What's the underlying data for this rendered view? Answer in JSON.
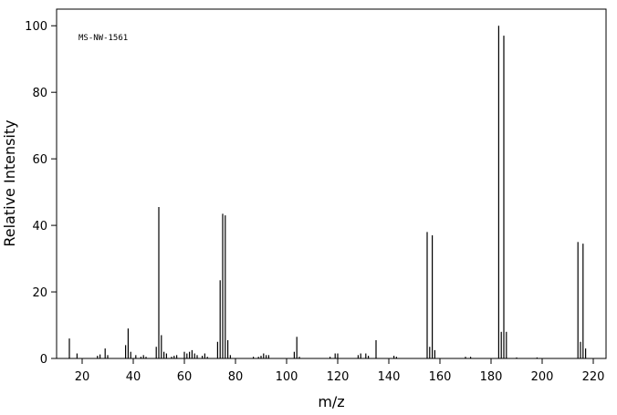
{
  "chart_data": {
    "type": "stem",
    "annotation": "MS-NW-1561",
    "x_label": "m/z",
    "y_label": "Relative Intensity",
    "color": "#000000",
    "x": [
      15,
      18,
      26,
      27,
      29,
      30,
      37,
      38,
      39,
      41,
      43,
      44,
      45,
      49,
      50,
      51,
      52,
      53,
      55,
      56,
      57,
      60,
      61,
      62,
      63,
      64,
      65,
      67,
      68,
      69,
      73,
      74,
      75,
      76,
      77,
      78,
      87,
      89,
      90,
      91,
      92,
      93,
      103,
      104,
      105,
      117,
      119,
      120,
      128,
      129,
      131,
      132,
      135,
      142,
      143,
      155,
      156,
      157,
      158,
      170,
      172,
      183,
      184,
      185,
      186,
      190,
      198,
      214,
      215,
      216,
      217
    ],
    "values": [
      6,
      1.5,
      0.8,
      1.2,
      3,
      1,
      4,
      9,
      2,
      1,
      0.5,
      1,
      0.5,
      3.5,
      45.5,
      7,
      2,
      1.5,
      0.5,
      0.8,
      1,
      2,
      1.5,
      2,
      2.5,
      1.5,
      1,
      0.8,
      1.5,
      0.5,
      5,
      23.5,
      43.5,
      43,
      5.5,
      1,
      0.5,
      0.5,
      0.8,
      1.5,
      1,
      1,
      2,
      6.5,
      0.5,
      0.5,
      1.5,
      1.5,
      1,
      1.5,
      1.5,
      0.8,
      5.5,
      0.8,
      0.5,
      38,
      3.5,
      37,
      2.5,
      0.5,
      0.5,
      100,
      8,
      97,
      8,
      0.3,
      0.3,
      35,
      5,
      34.5,
      3
    ],
    "xlim": [
      10,
      225
    ],
    "ylim": [
      0,
      105
    ],
    "xticks": [
      20,
      40,
      60,
      80,
      100,
      120,
      140,
      160,
      180,
      200,
      220
    ],
    "yticks": [
      0,
      20,
      40,
      60,
      80,
      100
    ]
  }
}
